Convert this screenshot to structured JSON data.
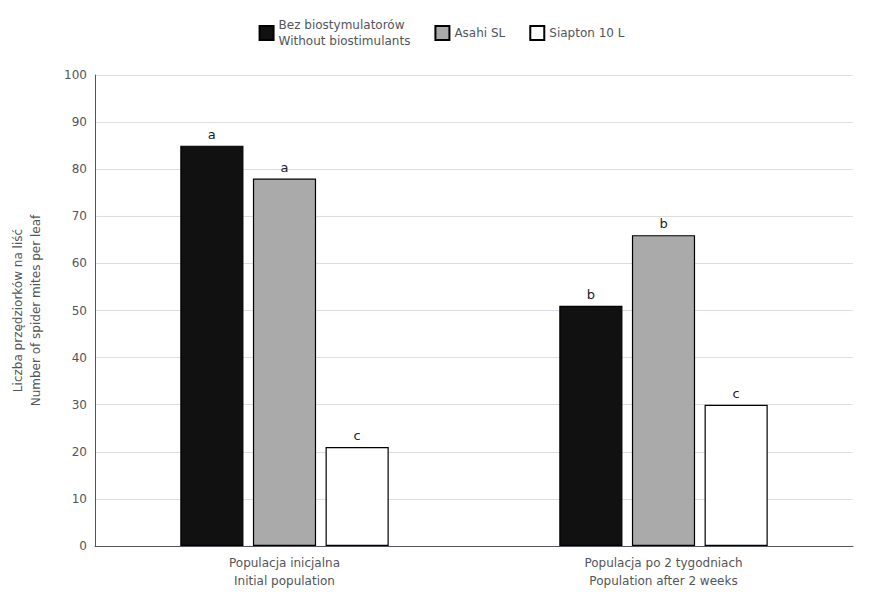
{
  "chart_data": {
    "type": "bar",
    "categories": [
      "Populacja inicjalna\nInitial population",
      "Populacja po 2 tygodniach\nPopulation after 2 weeks"
    ],
    "series": [
      {
        "name": "Bez biostymulatorów\nWithout biostimulants",
        "color": "#111111",
        "values": [
          85,
          51
        ],
        "annotations": [
          "a",
          "b"
        ]
      },
      {
        "name": "Asahi SL",
        "color": "#aaaaaa",
        "values": [
          78,
          66
        ],
        "annotations": [
          "a",
          "b"
        ]
      },
      {
        "name": "Siapton 10 L",
        "color": "#ffffff",
        "values": [
          21,
          30
        ],
        "annotations": [
          "c",
          "c"
        ]
      }
    ],
    "ylabel": "Liczba przędziorków na liść\nNumber of spider mites per leaf",
    "ylim": [
      0,
      100
    ],
    "yticks": [
      0,
      10,
      20,
      30,
      40,
      50,
      60,
      70,
      80,
      90,
      100
    ],
    "grid": true,
    "legend": "top"
  }
}
